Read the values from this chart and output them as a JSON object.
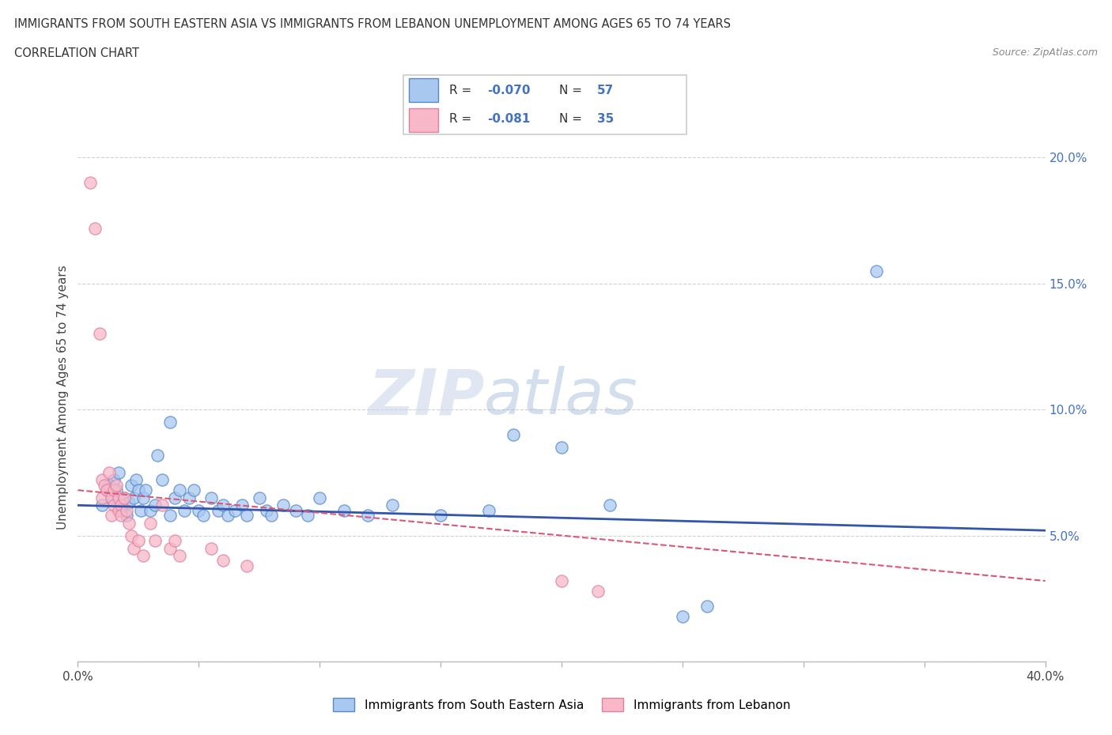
{
  "title_line1": "IMMIGRANTS FROM SOUTH EASTERN ASIA VS IMMIGRANTS FROM LEBANON UNEMPLOYMENT AMONG AGES 65 TO 74 YEARS",
  "title_line2": "CORRELATION CHART",
  "source": "Source: ZipAtlas.com",
  "ylabel": "Unemployment Among Ages 65 to 74 years",
  "xlim": [
    0.0,
    0.4
  ],
  "ylim": [
    0.0,
    0.21
  ],
  "xticks": [
    0.0,
    0.05,
    0.1,
    0.15,
    0.2,
    0.25,
    0.3,
    0.35,
    0.4
  ],
  "yticks": [
    0.0,
    0.05,
    0.1,
    0.15,
    0.2
  ],
  "watermark_zip": "ZIP",
  "watermark_atlas": "atlas",
  "blue_color": "#A8C8F0",
  "pink_color": "#F8B8C8",
  "blue_edge_color": "#5588CC",
  "pink_edge_color": "#E080A0",
  "blue_line_color": "#3355AA",
  "pink_line_color": "#DD5577",
  "value_color": "#4472C4",
  "blue_scatter": [
    [
      0.01,
      0.062
    ],
    [
      0.012,
      0.068
    ],
    [
      0.013,
      0.07
    ],
    [
      0.014,
      0.065
    ],
    [
      0.015,
      0.072
    ],
    [
      0.016,
      0.068
    ],
    [
      0.017,
      0.075
    ],
    [
      0.018,
      0.062
    ],
    [
      0.018,
      0.06
    ],
    [
      0.019,
      0.065
    ],
    [
      0.02,
      0.058
    ],
    [
      0.021,
      0.063
    ],
    [
      0.022,
      0.07
    ],
    [
      0.023,
      0.065
    ],
    [
      0.024,
      0.072
    ],
    [
      0.025,
      0.068
    ],
    [
      0.026,
      0.06
    ],
    [
      0.027,
      0.065
    ],
    [
      0.028,
      0.068
    ],
    [
      0.03,
      0.06
    ],
    [
      0.032,
      0.062
    ],
    [
      0.033,
      0.082
    ],
    [
      0.035,
      0.072
    ],
    [
      0.038,
      0.058
    ],
    [
      0.04,
      0.065
    ],
    [
      0.042,
      0.068
    ],
    [
      0.044,
      0.06
    ],
    [
      0.046,
      0.065
    ],
    [
      0.048,
      0.068
    ],
    [
      0.05,
      0.06
    ],
    [
      0.052,
      0.058
    ],
    [
      0.055,
      0.065
    ],
    [
      0.058,
      0.06
    ],
    [
      0.06,
      0.062
    ],
    [
      0.062,
      0.058
    ],
    [
      0.065,
      0.06
    ],
    [
      0.068,
      0.062
    ],
    [
      0.07,
      0.058
    ],
    [
      0.075,
      0.065
    ],
    [
      0.078,
      0.06
    ],
    [
      0.08,
      0.058
    ],
    [
      0.085,
      0.062
    ],
    [
      0.09,
      0.06
    ],
    [
      0.095,
      0.058
    ],
    [
      0.1,
      0.065
    ],
    [
      0.11,
      0.06
    ],
    [
      0.12,
      0.058
    ],
    [
      0.13,
      0.062
    ],
    [
      0.15,
      0.058
    ],
    [
      0.17,
      0.06
    ],
    [
      0.18,
      0.09
    ],
    [
      0.2,
      0.085
    ],
    [
      0.22,
      0.062
    ],
    [
      0.25,
      0.018
    ],
    [
      0.26,
      0.022
    ],
    [
      0.33,
      0.155
    ],
    [
      0.038,
      0.095
    ]
  ],
  "pink_scatter": [
    [
      0.005,
      0.19
    ],
    [
      0.007,
      0.172
    ],
    [
      0.009,
      0.13
    ],
    [
      0.01,
      0.072
    ],
    [
      0.01,
      0.065
    ],
    [
      0.011,
      0.07
    ],
    [
      0.012,
      0.068
    ],
    [
      0.013,
      0.075
    ],
    [
      0.014,
      0.065
    ],
    [
      0.014,
      0.058
    ],
    [
      0.015,
      0.068
    ],
    [
      0.015,
      0.062
    ],
    [
      0.016,
      0.07
    ],
    [
      0.017,
      0.065
    ],
    [
      0.017,
      0.06
    ],
    [
      0.018,
      0.062
    ],
    [
      0.018,
      0.058
    ],
    [
      0.019,
      0.065
    ],
    [
      0.02,
      0.06
    ],
    [
      0.021,
      0.055
    ],
    [
      0.022,
      0.05
    ],
    [
      0.023,
      0.045
    ],
    [
      0.025,
      0.048
    ],
    [
      0.027,
      0.042
    ],
    [
      0.03,
      0.055
    ],
    [
      0.032,
      0.048
    ],
    [
      0.035,
      0.062
    ],
    [
      0.038,
      0.045
    ],
    [
      0.04,
      0.048
    ],
    [
      0.042,
      0.042
    ],
    [
      0.055,
      0.045
    ],
    [
      0.06,
      0.04
    ],
    [
      0.07,
      0.038
    ],
    [
      0.2,
      0.032
    ],
    [
      0.215,
      0.028
    ]
  ],
  "blue_trend": [
    0.0,
    0.4,
    0.062,
    0.052
  ],
  "pink_trend": [
    0.0,
    0.4,
    0.068,
    0.032
  ]
}
